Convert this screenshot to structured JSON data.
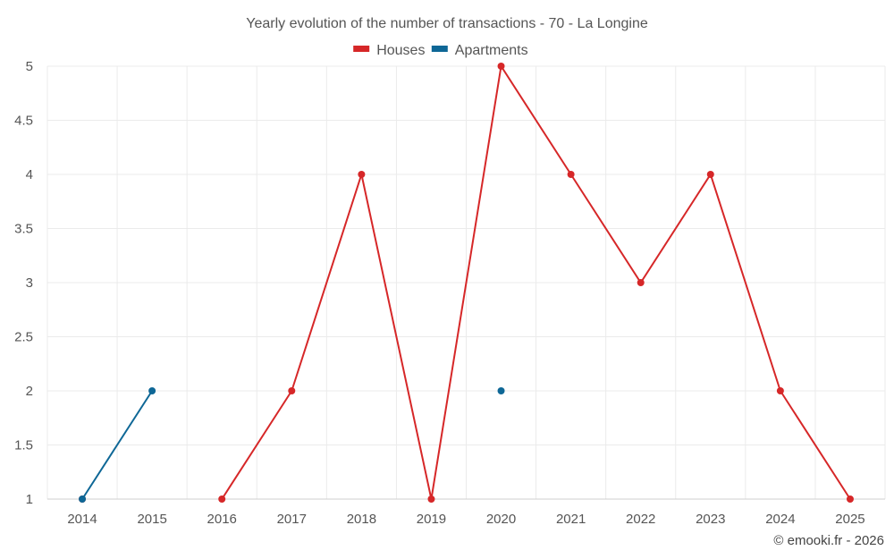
{
  "chart_data": {
    "type": "line",
    "title": "Yearly evolution of the number of transactions - 70 - La Longine",
    "xlabel": "",
    "ylabel": "",
    "categories": [
      "2014",
      "2015",
      "2016",
      "2017",
      "2018",
      "2019",
      "2020",
      "2021",
      "2022",
      "2023",
      "2024",
      "2025"
    ],
    "ylim": [
      1,
      5
    ],
    "yticks": [
      "1",
      "1.5",
      "2",
      "2.5",
      "3",
      "3.5",
      "4",
      "4.5",
      "5"
    ],
    "yticks_values": [
      1,
      1.5,
      2,
      2.5,
      3,
      3.5,
      4,
      4.5,
      5
    ],
    "grid": true,
    "legend_position": "top-center",
    "series": [
      {
        "name": "Houses",
        "color": "#d62728",
        "values": [
          1,
          null,
          1,
          2,
          4,
          1,
          5,
          4,
          3,
          4,
          2,
          1
        ]
      },
      {
        "name": "Apartments",
        "color": "#0e6796",
        "values": [
          1,
          2,
          null,
          null,
          null,
          null,
          2,
          null,
          null,
          null,
          null,
          null
        ]
      }
    ]
  },
  "credit": "© emooki.fr - 2026"
}
